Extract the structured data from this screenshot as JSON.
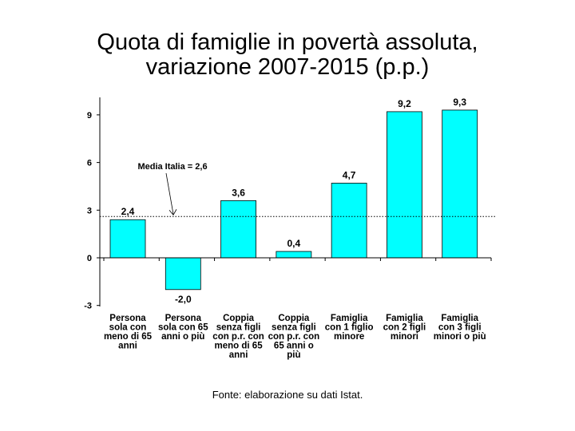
{
  "title_line1": "Quota di famiglie in povertà assoluta,",
  "title_line2": "variazione 2007-2015 (p.p.)",
  "source": "Fonte: elaborazione su dati Istat.",
  "chart_data": {
    "type": "bar",
    "categories": [
      [
        "Persona",
        "sola con",
        "meno di 65",
        "anni"
      ],
      [
        "Persona",
        "sola con 65",
        "anni o più"
      ],
      [
        "Coppia",
        "senza figli",
        "con p.r. con",
        "meno di 65",
        "anni"
      ],
      [
        "Coppia",
        "senza figli",
        "con p.r. con",
        "65 anni o",
        "più"
      ],
      [
        "Famiglia",
        "con 1 figlio",
        "minore"
      ],
      [
        "Famiglia",
        "con 2 figli",
        "minori"
      ],
      [
        "Famiglia",
        "con 3 figli",
        "minori o più"
      ]
    ],
    "values": [
      2.4,
      -2.0,
      3.6,
      0.4,
      4.7,
      9.2,
      9.3
    ],
    "value_labels": [
      "2,4",
      "-2,0",
      "3,6",
      "0,4",
      "4,7",
      "9,2",
      "9,3"
    ],
    "yticks": [
      "-3",
      "0",
      "3",
      "6",
      "9"
    ],
    "ylim": [
      -3,
      10
    ],
    "bar_color": "#00ffff",
    "reference_line": {
      "value": 2.6,
      "label": "Media Italia = 2,6",
      "style": "dotted"
    },
    "title": "Quota di famiglie in povertà assoluta, variazione 2007-2015 (p.p.)"
  }
}
